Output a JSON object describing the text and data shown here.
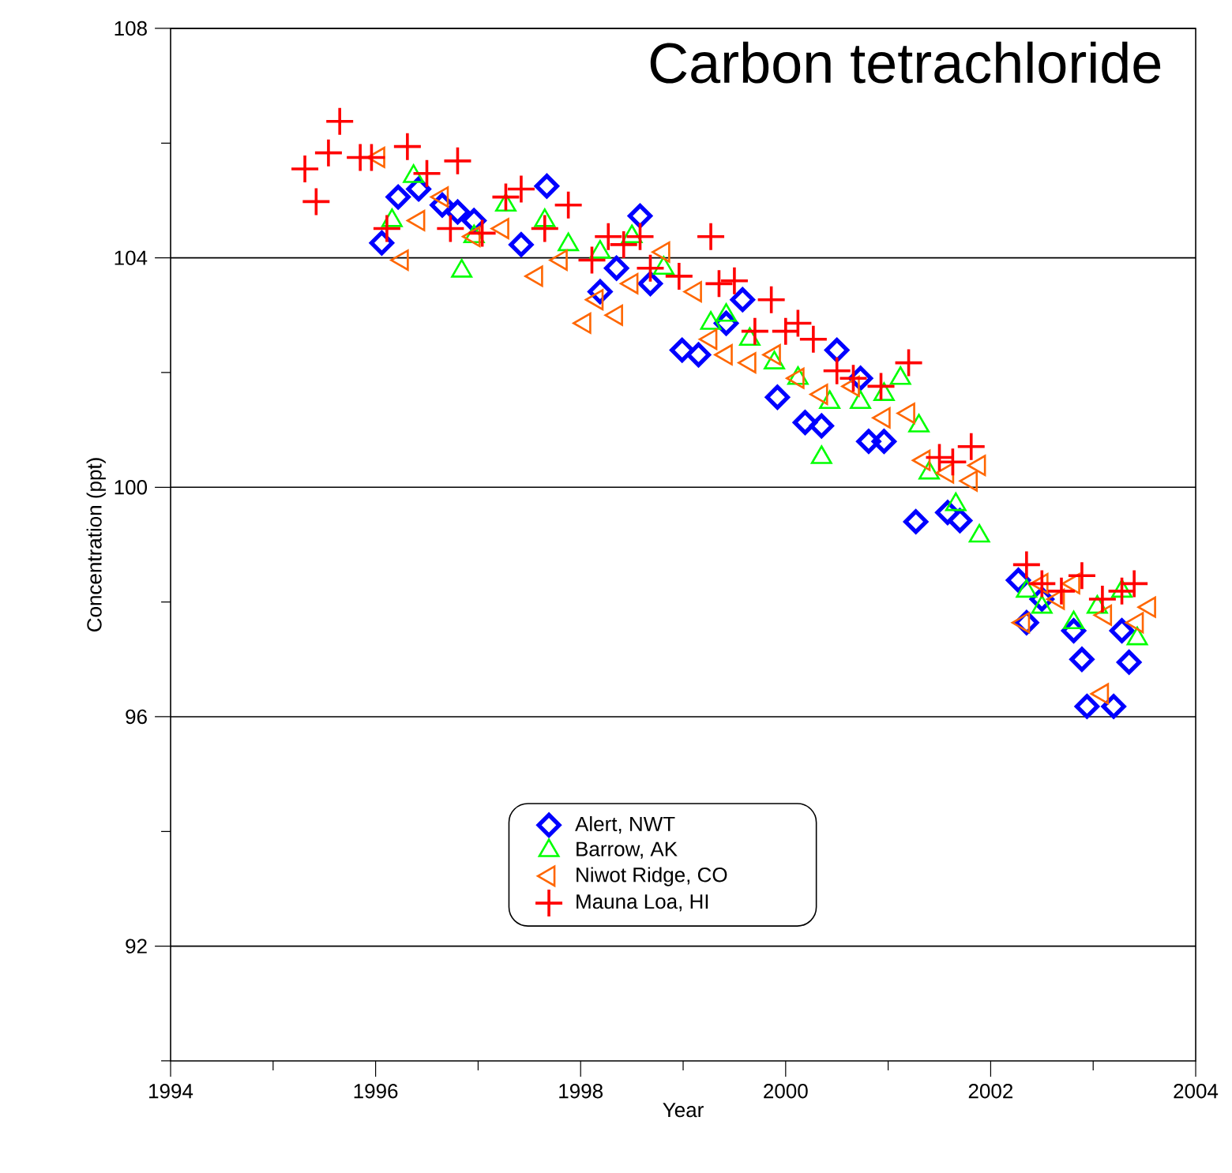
{
  "chart_data": {
    "type": "scatter",
    "title": "Carbon tetrachloride",
    "xlabel": "Year",
    "ylabel": "Concentration (ppt)",
    "xlim": [
      1994,
      2004
    ],
    "ylim": [
      90,
      108
    ],
    "xticks": [
      1994,
      {
        "value": 1995,
        "label": null
      },
      1996,
      {
        "value": 1997,
        "label": null
      },
      1998,
      {
        "value": 1999,
        "label": null
      },
      2000,
      {
        "value": 2001,
        "label": null
      },
      2002,
      {
        "value": 2003,
        "label": null
      },
      2004
    ],
    "yticks": [
      {
        "value": 90,
        "label": null
      },
      92,
      {
        "value": 94,
        "label": null
      },
      96,
      {
        "value": 98,
        "label": null
      },
      100,
      {
        "value": 102,
        "label": null
      },
      104,
      {
        "value": 106,
        "label": null
      },
      108
    ],
    "grid": "y",
    "legend": "bottom",
    "series": [
      {
        "name": "Alert, NWT",
        "color": "#0000ff",
        "marker": "diamond",
        "x": [
          1996.06,
          1996.22,
          1996.42,
          1996.65,
          1996.8,
          1996.96,
          1997.42,
          1997.67,
          1998.19,
          1998.35,
          1998.58,
          1998.68,
          1998.99,
          1999.15,
          1999.42,
          1999.58,
          1999.92,
          2000.19,
          2000.35,
          2000.5,
          2000.73,
          2000.81,
          2000.96,
          2001.27,
          2001.58,
          2001.7,
          2002.27,
          2002.35,
          2002.5,
          2002.81,
          2002.89,
          2002.94,
          2003.2,
          2003.28,
          2003.35
        ],
        "values": [
          104.26,
          105.06,
          105.2,
          104.92,
          104.8,
          104.65,
          104.23,
          105.25,
          103.41,
          103.82,
          104.73,
          103.55,
          102.39,
          102.31,
          102.86,
          103.27,
          101.57,
          101.13,
          101.07,
          102.39,
          101.9,
          100.8,
          100.8,
          99.4,
          99.56,
          99.42,
          98.38,
          97.64,
          98.05,
          97.5,
          97.0,
          96.18,
          96.18,
          97.5,
          96.95
        ]
      },
      {
        "name": "Barrow, AK",
        "color": "#00ff00",
        "marker": "triangle",
        "x": [
          1996.16,
          1996.37,
          1996.84,
          1996.96,
          1997.27,
          1997.65,
          1997.88,
          1998.19,
          1998.5,
          1998.81,
          1999.27,
          1999.42,
          1999.65,
          1999.89,
          2000.12,
          2000.35,
          2000.43,
          2000.73,
          2000.96,
          2001.12,
          2001.3,
          2001.4,
          2001.66,
          2001.89,
          2002.35,
          2002.5,
          2002.81,
          2003.04,
          2003.28,
          2003.43
        ],
        "values": [
          104.65,
          105.42,
          103.77,
          104.37,
          104.92,
          104.65,
          104.23,
          104.1,
          104.37,
          103.82,
          102.86,
          103.0,
          102.58,
          102.17,
          101.9,
          100.52,
          101.48,
          101.48,
          101.62,
          101.9,
          101.07,
          100.25,
          99.7,
          99.15,
          98.19,
          97.91,
          97.64,
          97.91,
          98.19,
          97.36
        ]
      },
      {
        "name": "Niwot Ridge, CO",
        "color": "#ff6600",
        "marker": "triangle-left",
        "x": [
          1996.03,
          1996.26,
          1996.42,
          1996.65,
          1996.96,
          1997.24,
          1997.57,
          1997.81,
          1998.04,
          1998.16,
          1998.35,
          1998.5,
          1998.81,
          1999.12,
          1999.27,
          1999.42,
          1999.65,
          1999.89,
          2000.12,
          2000.35,
          2000.66,
          2000.96,
          2001.2,
          2001.35,
          2001.58,
          2001.81,
          2001.89,
          2002.32,
          2002.5,
          2002.66,
          2002.81,
          2003.12,
          2003.09,
          2003.43,
          2003.55
        ],
        "values": [
          105.75,
          103.96,
          104.65,
          105.06,
          104.37,
          104.51,
          103.68,
          103.96,
          102.86,
          103.27,
          103.0,
          103.55,
          104.1,
          103.41,
          102.58,
          102.31,
          102.17,
          102.31,
          101.9,
          101.62,
          101.76,
          101.21,
          101.29,
          100.47,
          100.25,
          100.11,
          100.38,
          97.64,
          98.32,
          98.05,
          98.32,
          97.77,
          96.4,
          97.64,
          97.91
        ]
      },
      {
        "name": "Mauna Loa, HI",
        "color": "#ff0000",
        "marker": "cross",
        "x": [
          1995.31,
          1995.42,
          1995.54,
          1995.65,
          1995.85,
          1995.96,
          1996.11,
          1996.31,
          1996.5,
          1996.73,
          1996.8,
          1997.04,
          1997.27,
          1997.42,
          1997.65,
          1997.88,
          1998.11,
          1998.27,
          1998.42,
          1998.58,
          1998.68,
          1998.96,
          1999.27,
          1999.35,
          1999.5,
          1999.7,
          1999.86,
          2000.0,
          2000.12,
          2000.27,
          2000.5,
          2000.66,
          2000.93,
          2001.2,
          2001.5,
          2001.63,
          2001.81,
          2002.35,
          2002.5,
          2002.69,
          2002.89,
          2003.09,
          2003.28,
          2003.4
        ],
        "values": [
          105.55,
          104.98,
          105.83,
          106.38,
          105.75,
          105.75,
          104.51,
          105.94,
          105.47,
          104.51,
          105.69,
          104.43,
          105.06,
          105.2,
          104.51,
          104.92,
          103.96,
          104.37,
          104.23,
          104.37,
          103.82,
          103.68,
          104.37,
          103.55,
          103.6,
          102.72,
          103.27,
          102.72,
          102.86,
          102.58,
          102.03,
          101.9,
          101.76,
          102.17,
          100.52,
          100.44,
          100.71,
          98.65,
          98.32,
          98.19,
          98.46,
          98.05,
          98.19,
          98.32
        ]
      }
    ]
  }
}
